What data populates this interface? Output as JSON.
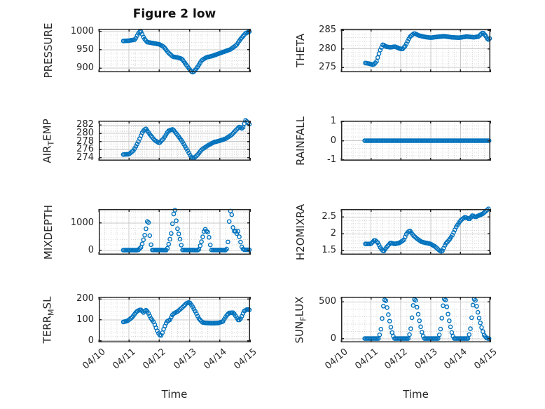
{
  "title": "Figure 2 low",
  "colors": {
    "marker": "#0072BD",
    "axis": "#262626",
    "grid_major": "#c9c9c9",
    "grid_minor": "#d6d6d6",
    "background": "#ffffff",
    "text": "#262626"
  },
  "chart_data": {
    "type": "scatter",
    "marker": "open-circle",
    "shared": {
      "xlabel": "Time",
      "xtick_values": [
        0,
        1,
        2,
        3,
        4,
        5
      ],
      "xtick_labels": [
        "04/10",
        "04/11",
        "04/12",
        "04/13",
        "04/14",
        "04/15"
      ],
      "xlim": [
        0,
        5
      ],
      "x_minor_step": 0.2,
      "xtick_rotation_deg": 40,
      "sample_hours": 1,
      "grid": "on",
      "minor_grid": "dotted"
    },
    "subplots": [
      {
        "name": "PRESSURE",
        "ylabel_parts": [
          {
            "t": "PRESSURE"
          }
        ],
        "yticks": [
          900,
          950,
          1000
        ],
        "ytick_labels": [
          "900",
          "950",
          "1000"
        ],
        "ylim": [
          888.5,
          1007.5
        ],
        "show_x_labels": false,
        "points": [
          [
            0.81,
            974
          ],
          [
            1.0,
            975
          ],
          [
            1.2,
            978
          ],
          [
            1.3,
            994
          ],
          [
            1.38,
            1002
          ],
          [
            1.5,
            981
          ],
          [
            1.6,
            971
          ],
          [
            1.8,
            968
          ],
          [
            2.0,
            965
          ],
          [
            2.15,
            958
          ],
          [
            2.3,
            942
          ],
          [
            2.45,
            931
          ],
          [
            2.6,
            929
          ],
          [
            2.75,
            925
          ],
          [
            2.9,
            908
          ],
          [
            3.05,
            891
          ],
          [
            3.12,
            888
          ],
          [
            3.25,
            901
          ],
          [
            3.4,
            921
          ],
          [
            3.55,
            929
          ],
          [
            3.75,
            933
          ],
          [
            3.95,
            939
          ],
          [
            4.15,
            945
          ],
          [
            4.35,
            951
          ],
          [
            4.55,
            963
          ],
          [
            4.7,
            981
          ],
          [
            4.85,
            995
          ],
          [
            4.98,
            1000
          ]
        ]
      },
      {
        "name": "THETA",
        "ylabel_parts": [
          {
            "t": "THETA"
          }
        ],
        "yticks": [
          275,
          280,
          285
        ],
        "ytick_labels": [
          "275",
          "280",
          "285"
        ],
        "ylim": [
          273.7,
          285.4
        ],
        "show_x_labels": false,
        "points": [
          [
            0.81,
            276.2
          ],
          [
            0.95,
            276.0
          ],
          [
            1.08,
            275.7
          ],
          [
            1.18,
            276.5
          ],
          [
            1.3,
            279.5
          ],
          [
            1.4,
            281.2
          ],
          [
            1.5,
            280.6
          ],
          [
            1.65,
            280.4
          ],
          [
            1.8,
            280.6
          ],
          [
            1.95,
            280.1
          ],
          [
            2.05,
            279.9
          ],
          [
            2.15,
            280.8
          ],
          [
            2.3,
            283.2
          ],
          [
            2.45,
            284.2
          ],
          [
            2.6,
            283.6
          ],
          [
            2.8,
            283.2
          ],
          [
            3.0,
            283.0
          ],
          [
            3.2,
            283.2
          ],
          [
            3.45,
            283.4
          ],
          [
            3.7,
            283.1
          ],
          [
            3.95,
            283.0
          ],
          [
            4.2,
            283.3
          ],
          [
            4.45,
            283.1
          ],
          [
            4.6,
            283.3
          ],
          [
            4.75,
            284.4
          ],
          [
            4.85,
            283.4
          ],
          [
            4.92,
            282.4
          ],
          [
            4.98,
            282.8
          ]
        ]
      },
      {
        "name": "AIR_TEMP",
        "ylabel_parts": [
          {
            "t": "AIR"
          },
          {
            "t": "T",
            "sub": true
          },
          {
            "t": "EMP"
          }
        ],
        "yticks": [
          274,
          276,
          278,
          280,
          282
        ],
        "ytick_labels": [
          "274",
          "276",
          "278",
          "280",
          "282"
        ],
        "ylim": [
          273.3,
          283.1
        ],
        "show_x_labels": false,
        "points": [
          [
            0.81,
            274.8
          ],
          [
            1.0,
            274.9
          ],
          [
            1.15,
            275.8
          ],
          [
            1.3,
            277.8
          ],
          [
            1.45,
            280.4
          ],
          [
            1.55,
            281.2
          ],
          [
            1.7,
            279.6
          ],
          [
            1.85,
            278.3
          ],
          [
            2.0,
            277.6
          ],
          [
            2.15,
            278.8
          ],
          [
            2.3,
            280.6
          ],
          [
            2.45,
            281.0
          ],
          [
            2.6,
            279.6
          ],
          [
            2.75,
            278.1
          ],
          [
            2.9,
            276.2
          ],
          [
            3.05,
            274.2
          ],
          [
            3.12,
            273.8
          ],
          [
            3.25,
            274.6
          ],
          [
            3.4,
            276.0
          ],
          [
            3.6,
            277.0
          ],
          [
            3.8,
            277.8
          ],
          [
            4.0,
            278.2
          ],
          [
            4.2,
            278.7
          ],
          [
            4.4,
            279.7
          ],
          [
            4.55,
            280.9
          ],
          [
            4.65,
            281.6
          ],
          [
            4.75,
            281.1
          ],
          [
            4.85,
            283.2
          ],
          [
            4.92,
            282.7
          ],
          [
            4.98,
            282.2
          ]
        ]
      },
      {
        "name": "RAINFALL",
        "ylabel_parts": [
          {
            "t": "RAINFALL"
          }
        ],
        "yticks": [
          -1,
          0,
          1
        ],
        "ytick_labels": [
          "-1",
          "0",
          "1"
        ],
        "ylim": [
          -1.05,
          1.05
        ],
        "show_x_labels": false,
        "points": [
          [
            0.79,
            0
          ],
          [
            4.98,
            0
          ]
        ]
      },
      {
        "name": "MIXDEPTH",
        "ylabel_parts": [
          {
            "t": "MIXDEPTH"
          }
        ],
        "yticks": [
          0,
          1000
        ],
        "ytick_labels": [
          "0",
          "1000"
        ],
        "ylim": [
          -155,
          1505
        ],
        "show_x_labels": false,
        "points": [
          [
            0.81,
            10
          ],
          [
            1.3,
            10
          ],
          [
            1.4,
            120
          ],
          [
            1.46,
            320
          ],
          [
            1.52,
            560
          ],
          [
            1.58,
            900
          ],
          [
            1.63,
            1250
          ],
          [
            1.66,
            720
          ],
          [
            1.7,
            430
          ],
          [
            1.75,
            15
          ],
          [
            2.25,
            10
          ],
          [
            2.33,
            300
          ],
          [
            2.4,
            650
          ],
          [
            2.46,
            1200
          ],
          [
            2.5,
            1500
          ],
          [
            2.53,
            1440
          ],
          [
            2.57,
            960
          ],
          [
            2.62,
            690
          ],
          [
            2.66,
            540
          ],
          [
            2.71,
            280
          ],
          [
            2.76,
            15
          ],
          [
            3.3,
            10
          ],
          [
            3.38,
            260
          ],
          [
            3.45,
            560
          ],
          [
            3.5,
            800
          ],
          [
            3.56,
            700
          ],
          [
            3.62,
            650
          ],
          [
            3.67,
            280
          ],
          [
            3.72,
            15
          ],
          [
            4.22,
            10
          ],
          [
            4.28,
            380
          ],
          [
            4.33,
            1500
          ],
          [
            4.4,
            1280
          ],
          [
            4.45,
            640
          ],
          [
            4.5,
            760
          ],
          [
            4.55,
            590
          ],
          [
            4.6,
            700
          ],
          [
            4.66,
            420
          ],
          [
            4.72,
            140
          ],
          [
            4.78,
            25
          ],
          [
            4.98,
            20
          ]
        ]
      },
      {
        "name": "H2OMIXRA",
        "ylabel_parts": [
          {
            "t": "H2OMIXRA"
          }
        ],
        "yticks": [
          1.5,
          2,
          2.5
        ],
        "ytick_labels": [
          "1.5",
          "2",
          "2.5"
        ],
        "ylim": [
          1.38,
          2.74
        ],
        "show_x_labels": false,
        "points": [
          [
            0.81,
            1.7
          ],
          [
            1.0,
            1.7
          ],
          [
            1.12,
            1.82
          ],
          [
            1.22,
            1.75
          ],
          [
            1.32,
            1.58
          ],
          [
            1.42,
            1.47
          ],
          [
            1.52,
            1.6
          ],
          [
            1.65,
            1.73
          ],
          [
            1.8,
            1.7
          ],
          [
            1.95,
            1.73
          ],
          [
            2.1,
            1.82
          ],
          [
            2.2,
            2.02
          ],
          [
            2.3,
            2.1
          ],
          [
            2.42,
            1.95
          ],
          [
            2.55,
            1.85
          ],
          [
            2.7,
            1.76
          ],
          [
            2.85,
            1.73
          ],
          [
            3.0,
            1.7
          ],
          [
            3.15,
            1.62
          ],
          [
            3.3,
            1.5
          ],
          [
            3.38,
            1.47
          ],
          [
            3.5,
            1.7
          ],
          [
            3.62,
            1.82
          ],
          [
            3.72,
            1.95
          ],
          [
            3.85,
            2.2
          ],
          [
            4.0,
            2.4
          ],
          [
            4.15,
            2.5
          ],
          [
            4.3,
            2.44
          ],
          [
            4.4,
            2.55
          ],
          [
            4.5,
            2.5
          ],
          [
            4.62,
            2.55
          ],
          [
            4.75,
            2.6
          ],
          [
            4.85,
            2.68
          ],
          [
            4.95,
            2.76
          ]
        ]
      },
      {
        "name": "TERR_MSL",
        "ylabel_parts": [
          {
            "t": "TERR"
          },
          {
            "t": "M",
            "sub": true
          },
          {
            "t": "SL"
          }
        ],
        "yticks": [
          0,
          100,
          200
        ],
        "ytick_labels": [
          "0",
          "100",
          "200"
        ],
        "ylim": [
          -8,
          211
        ],
        "show_x_labels": true,
        "points": [
          [
            0.81,
            90
          ],
          [
            0.95,
            95
          ],
          [
            1.1,
            112
          ],
          [
            1.25,
            140
          ],
          [
            1.38,
            150
          ],
          [
            1.48,
            135
          ],
          [
            1.55,
            148
          ],
          [
            1.62,
            138
          ],
          [
            1.72,
            108
          ],
          [
            1.82,
            88
          ],
          [
            1.92,
            52
          ],
          [
            2.0,
            28
          ],
          [
            2.07,
            25
          ],
          [
            2.15,
            58
          ],
          [
            2.25,
            92
          ],
          [
            2.35,
            100
          ],
          [
            2.45,
            128
          ],
          [
            2.6,
            140
          ],
          [
            2.75,
            158
          ],
          [
            2.9,
            180
          ],
          [
            3.0,
            185
          ],
          [
            3.1,
            163
          ],
          [
            3.2,
            138
          ],
          [
            3.3,
            108
          ],
          [
            3.42,
            88
          ],
          [
            3.55,
            85
          ],
          [
            3.75,
            84
          ],
          [
            3.95,
            85
          ],
          [
            4.1,
            92
          ],
          [
            4.22,
            120
          ],
          [
            4.3,
            133
          ],
          [
            4.45,
            135
          ],
          [
            4.55,
            112
          ],
          [
            4.62,
            96
          ],
          [
            4.7,
            108
          ],
          [
            4.8,
            142
          ],
          [
            4.9,
            150
          ],
          [
            4.98,
            148
          ]
        ]
      },
      {
        "name": "SUN_FLUX",
        "ylabel_parts": [
          {
            "t": "SUN"
          },
          {
            "t": "F",
            "sub": true
          },
          {
            "t": "LUX"
          }
        ],
        "yticks": [
          0,
          500
        ],
        "ytick_labels": [
          "0",
          "500"
        ],
        "ylim": [
          -50,
          570
        ],
        "show_x_labels": true,
        "points": [
          [
            0.79,
            2
          ],
          [
            1.25,
            2
          ],
          [
            1.32,
            90
          ],
          [
            1.37,
            260
          ],
          [
            1.41,
            430
          ],
          [
            1.45,
            530
          ],
          [
            1.5,
            515
          ],
          [
            1.55,
            400
          ],
          [
            1.6,
            285
          ],
          [
            1.66,
            165
          ],
          [
            1.72,
            60
          ],
          [
            1.78,
            2
          ],
          [
            2.25,
            2
          ],
          [
            2.32,
            95
          ],
          [
            2.37,
            270
          ],
          [
            2.41,
            440
          ],
          [
            2.45,
            535
          ],
          [
            2.5,
            520
          ],
          [
            2.55,
            405
          ],
          [
            2.6,
            290
          ],
          [
            2.66,
            170
          ],
          [
            2.72,
            65
          ],
          [
            2.78,
            2
          ],
          [
            3.25,
            2
          ],
          [
            3.32,
            90
          ],
          [
            3.37,
            265
          ],
          [
            3.41,
            435
          ],
          [
            3.45,
            540
          ],
          [
            3.5,
            525
          ],
          [
            3.55,
            410
          ],
          [
            3.6,
            290
          ],
          [
            3.66,
            170
          ],
          [
            3.72,
            60
          ],
          [
            3.78,
            2
          ],
          [
            4.25,
            2
          ],
          [
            4.32,
            95
          ],
          [
            4.37,
            270
          ],
          [
            4.41,
            445
          ],
          [
            4.45,
            540
          ],
          [
            4.5,
            520
          ],
          [
            4.56,
            400
          ],
          [
            4.62,
            285
          ],
          [
            4.7,
            160
          ],
          [
            4.78,
            55
          ],
          [
            4.88,
            5
          ],
          [
            4.98,
            0
          ]
        ]
      }
    ]
  }
}
